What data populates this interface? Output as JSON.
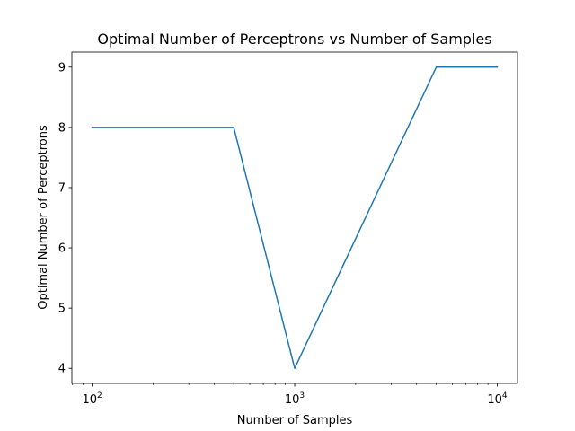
{
  "chart_data": {
    "type": "line",
    "title": "Optimal Number of Perceptrons vs Number of Samples",
    "xlabel": "Number of Samples",
    "ylabel": "Optimal Number of Perceptrons",
    "xscale": "log",
    "xlim": [
      79.4,
      12589
    ],
    "ylim": [
      3.75,
      9.25
    ],
    "x_ticks": [
      {
        "value": 100,
        "base": "10",
        "exp": "2"
      },
      {
        "value": 1000,
        "base": "10",
        "exp": "3"
      },
      {
        "value": 10000,
        "base": "10",
        "exp": "4"
      }
    ],
    "y_ticks": [
      "4",
      "5",
      "6",
      "7",
      "8",
      "9"
    ],
    "grid": false,
    "series": [
      {
        "color": "#1f77b4",
        "x": [
          100,
          500,
          1000,
          5000,
          10000
        ],
        "y": [
          8,
          8,
          4,
          9,
          9
        ]
      }
    ]
  }
}
